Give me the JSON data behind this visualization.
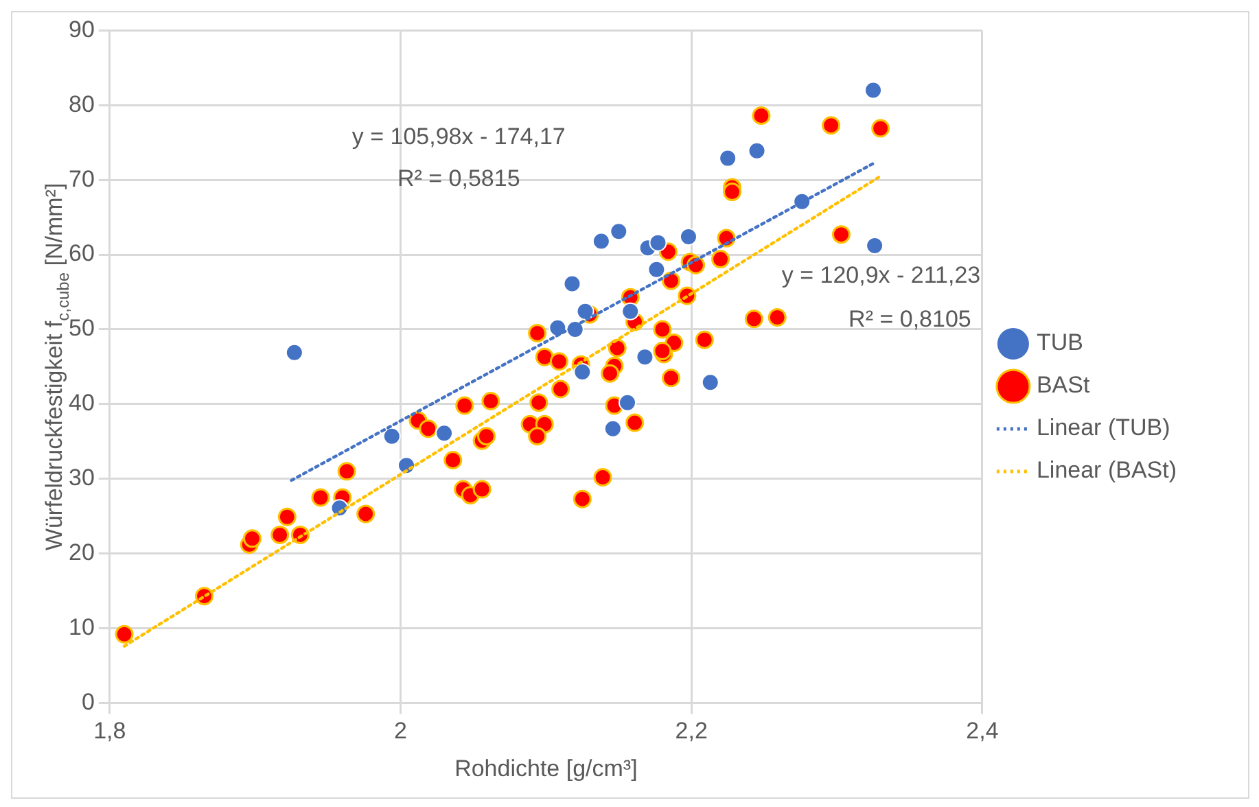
{
  "chart_data": {
    "type": "scatter",
    "xlabel": "Rohdichte [g/cm³]",
    "ylabel": "Würfeldruckfestigkeit f$_{c,cube}$ [N/mm²]",
    "xlim": [
      1.8,
      2.4
    ],
    "xticks": [
      {
        "value": 1.8,
        "label": "1,8"
      },
      2,
      {
        "value": 2.2,
        "label": "2,2"
      },
      {
        "value": 2.4,
        "label": "2,4"
      }
    ],
    "ylim": [
      0,
      90
    ],
    "yticks": [
      0,
      10,
      20,
      30,
      40,
      50,
      60,
      70,
      80,
      90
    ],
    "grid": true,
    "legend": "right",
    "marker": "circle",
    "series": [
      {
        "name": "TUB",
        "type": "scatter",
        "color": "#4472c4",
        "x": [
          1.927,
          1.994,
          2.004,
          2.03,
          1.958,
          2.138,
          2.15,
          2.17,
          2.177,
          2.198,
          2.176,
          2.118,
          2.127,
          2.12,
          2.158,
          2.168,
          2.213,
          2.156,
          2.146,
          2.125,
          2.108,
          2.325,
          2.225,
          2.245,
          2.276,
          2.326
        ],
        "values": [
          46.9,
          35.7,
          31.8,
          36.1,
          26.1,
          61.8,
          63.1,
          60.9,
          61.6,
          62.4,
          58.0,
          56.1,
          52.4,
          50.0,
          52.4,
          46.3,
          42.9,
          40.2,
          36.7,
          44.3,
          50.2,
          82.0,
          72.9,
          73.9,
          67.1,
          61.2
        ]
      },
      {
        "name": "BASt",
        "type": "scatter",
        "color": "#ff0000",
        "x": [
          1.81,
          1.865,
          1.896,
          1.898,
          1.917,
          1.922,
          1.931,
          1.945,
          1.96,
          1.963,
          1.976,
          2.012,
          2.019,
          2.036,
          2.043,
          2.044,
          2.062,
          2.048,
          2.056,
          2.056,
          2.059,
          2.089,
          2.099,
          2.094,
          2.095,
          2.11,
          2.099,
          2.109,
          2.124,
          2.147,
          2.144,
          2.147,
          2.161,
          2.139,
          2.125,
          2.186,
          2.181,
          2.228,
          2.228,
          2.303,
          2.224,
          2.184,
          2.22,
          2.199,
          2.203,
          2.186,
          2.197,
          2.158,
          2.13,
          2.161,
          2.18,
          2.188,
          2.209,
          2.149,
          2.18,
          2.243,
          2.259,
          2.248,
          2.296,
          2.33,
          2.094
        ],
        "values": [
          9.2,
          14.3,
          21.2,
          22.0,
          22.5,
          24.9,
          22.5,
          27.5,
          27.5,
          31.0,
          25.3,
          37.8,
          36.7,
          32.5,
          28.6,
          39.8,
          40.4,
          27.8,
          28.6,
          35.1,
          35.7,
          37.3,
          37.3,
          35.7,
          40.2,
          42.0,
          46.3,
          45.7,
          45.3,
          45.1,
          44.1,
          39.8,
          37.5,
          30.2,
          27.3,
          43.5,
          46.7,
          69.0,
          68.4,
          62.7,
          62.2,
          60.4,
          59.4,
          59.0,
          58.6,
          56.5,
          54.5,
          54.3,
          52.0,
          51.0,
          50.0,
          48.2,
          48.6,
          47.5,
          47.1,
          51.4,
          51.6,
          78.6,
          77.3,
          76.9,
          49.5
        ]
      },
      {
        "name": "Linear (TUB)",
        "type": "line",
        "color": "#4472c4",
        "marker": "none",
        "line_style": "dotted",
        "x": [
          1.925,
          2.325
        ],
        "values": [
          29.8,
          72.2
        ]
      },
      {
        "name": "Linear (BASt)",
        "type": "line",
        "color": "#ffc000",
        "marker": "none",
        "line_style": "dotted",
        "x": [
          1.81,
          2.33
        ],
        "values": [
          7.6,
          70.5
        ]
      }
    ],
    "annotations": [
      "y = 105,98x - 174,17",
      "R² = 0,5815",
      "y = 120,9x - 211,23",
      "R² = 0,8105"
    ]
  }
}
